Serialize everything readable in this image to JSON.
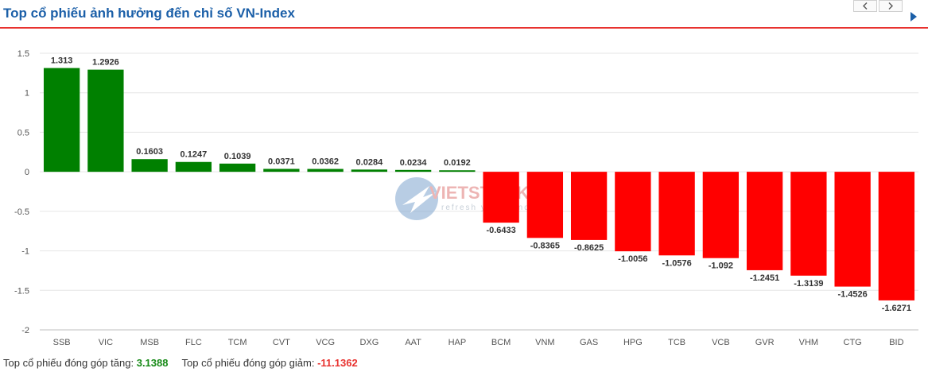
{
  "header": {
    "title": "Top cổ phiếu ảnh hưởng đến chỉ số VN-Index"
  },
  "colors": {
    "positive": "#008000",
    "negative": "#ff0000",
    "title": "#1b5fa8",
    "accent_line": "#e8322f"
  },
  "icons": {
    "prev": "chevron-left-icon",
    "next": "chevron-right-icon",
    "play": "play-triangle-icon"
  },
  "watermark": {
    "logo_text": "VIETSTOCK",
    "tagline": "refresh your mind"
  },
  "chart_data": {
    "type": "bar",
    "title": "",
    "xlabel": "",
    "ylabel": "",
    "ylim": [
      -2,
      1.5
    ],
    "yticks": [
      1.5,
      1,
      0.5,
      0,
      -0.5,
      -1,
      -1.5,
      -2
    ],
    "grid": true,
    "categories": [
      "SSB",
      "VIC",
      "MSB",
      "FLC",
      "TCM",
      "CVT",
      "VCG",
      "DXG",
      "AAT",
      "HAP",
      "BCM",
      "VNM",
      "GAS",
      "HPG",
      "TCB",
      "VCB",
      "GVR",
      "VHM",
      "CTG",
      "BID"
    ],
    "values": [
      1.313,
      1.2926,
      0.1603,
      0.1247,
      0.1039,
      0.0371,
      0.0362,
      0.0284,
      0.0234,
      0.0192,
      -0.6433,
      -0.8365,
      -0.8625,
      -1.0056,
      -1.0576,
      -1.092,
      -1.2451,
      -1.3139,
      -1.4526,
      -1.6271
    ],
    "labels": [
      "1.313",
      "1.2926",
      "0.1603",
      "0.1247",
      "0.1039",
      "0.0371",
      "0.0362",
      "0.0284",
      "0.0234",
      "0.0192",
      "-0.6433",
      "-0.8365",
      "-0.8625",
      "-1.0056",
      "-1.0576",
      "-1.092",
      "-1.2451",
      "-1.3139",
      "-1.4526",
      "-1.6271"
    ]
  },
  "summary": {
    "increase_label": "Top cổ phiếu đóng góp tăng:",
    "increase_value": "3.1388",
    "decrease_label": "Top cổ phiếu đóng góp giảm:",
    "decrease_value": "-11.1362"
  }
}
